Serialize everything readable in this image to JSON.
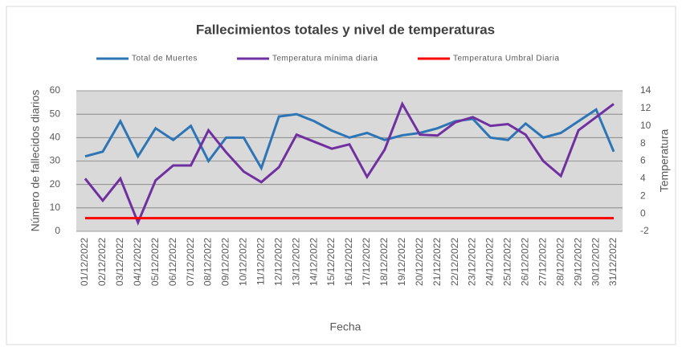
{
  "chart_data": {
    "type": "line",
    "title": "Fallecimientos totales y nivel de temperaturas",
    "x_label": "Fecha",
    "y_label": "Número de fallecidos diarios",
    "y2_label": "Temperatura",
    "categories": [
      "01/12/2022",
      "02/12/2022",
      "03/12/2022",
      "04/12/2022",
      "05/12/2022",
      "06/12/2022",
      "07/12/2022",
      "08/12/2022",
      "09/12/2022",
      "10/12/2022",
      "11/12/2022",
      "12/12/2022",
      "13/12/2022",
      "14/12/2022",
      "15/12/2022",
      "16/12/2022",
      "17/12/2022",
      "18/12/2022",
      "19/12/2022",
      "20/12/2022",
      "21/12/2022",
      "22/12/2022",
      "23/12/2022",
      "24/12/2022",
      "25/12/2022",
      "26/12/2022",
      "27/12/2022",
      "28/12/2022",
      "29/12/2022",
      "30/12/2022",
      "31/12/2022"
    ],
    "series": [
      {
        "name": "Total de Muertes",
        "color": "#2e75b6",
        "values": [
          32,
          34,
          47,
          32,
          44,
          39,
          45,
          30,
          40,
          40,
          27,
          49,
          50,
          47,
          43,
          40,
          42,
          39,
          41,
          42,
          44,
          47,
          48,
          40,
          39,
          46,
          40,
          42,
          47,
          52,
          34
        ]
      },
      {
        "name": "Temperatura mínima diaria",
        "color": "#7030a0",
        "axis": "y2",
        "values": [
          4,
          1.5,
          4,
          -1,
          3.8,
          5.5,
          5.5,
          9.5,
          7,
          4.8,
          3.6,
          5.3,
          9,
          8.2,
          7.4,
          7.9,
          4.2,
          7.3,
          12.5,
          9,
          8.9,
          10.4,
          11,
          10,
          10.2,
          9,
          6,
          4.3,
          9.5,
          11,
          12.5
        ]
      },
      {
        "name": "Temperatura Umbral Diaria",
        "color": "#ff0000",
        "axis": "y2",
        "values": [
          -0.5,
          -0.5,
          -0.5,
          -0.5,
          -0.5,
          -0.5,
          -0.5,
          -0.5,
          -0.5,
          -0.5,
          -0.5,
          -0.5,
          -0.5,
          -0.5,
          -0.5,
          -0.5,
          -0.5,
          -0.5,
          -0.5,
          -0.5,
          -0.5,
          -0.5,
          -0.5,
          -0.5,
          -0.5,
          -0.5,
          -0.5,
          -0.5,
          -0.5,
          -0.5,
          -0.5
        ]
      }
    ],
    "ylim": [
      0,
      60
    ],
    "yticks": [
      0,
      10,
      20,
      30,
      40,
      50,
      60
    ],
    "y2lim": [
      -2,
      14
    ],
    "y2ticks": [
      -2,
      0,
      2,
      4,
      6,
      8,
      10,
      12,
      14
    ],
    "grid": true,
    "legend": "top"
  }
}
